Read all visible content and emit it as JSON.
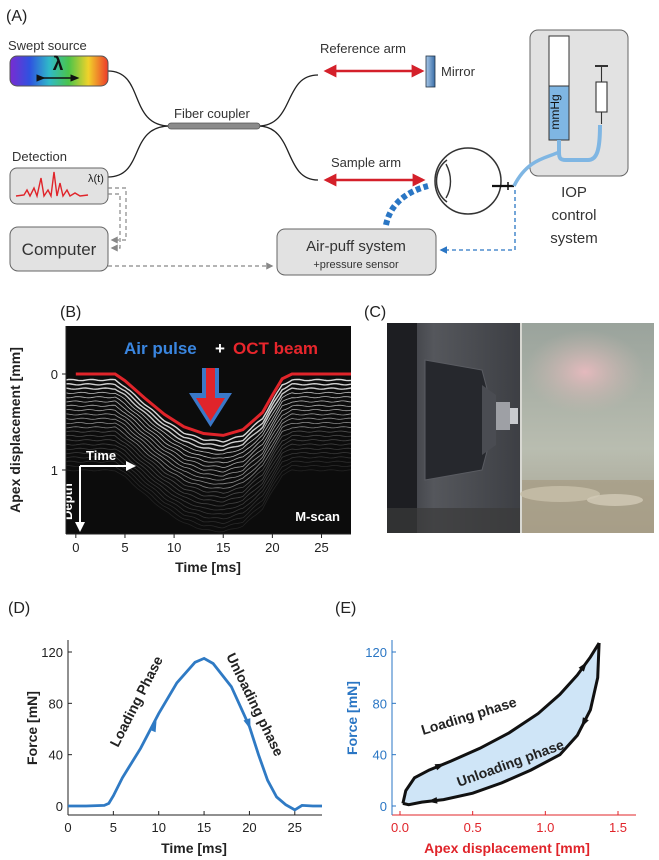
{
  "panels": {
    "a": {
      "label": "(A)",
      "swept_source": "Swept source",
      "lambda_symbol": "λ",
      "fiber_coupler": "Fiber coupler",
      "reference_arm": "Reference arm",
      "mirror": "Mirror",
      "detection": "Detection",
      "lambda_t": "λ(t)",
      "sample_arm": "Sample arm",
      "mmhg": "mmHg",
      "iop_line1": "IOP",
      "iop_line2": "control",
      "iop_line3": "system",
      "computer": "Computer",
      "airpuff_line1": "Air-puff system",
      "airpuff_line2": "+pressure sensor",
      "colors": {
        "red_arm": "#d4202a",
        "blue": "#2a76c4",
        "box_gray": "#e2e2e2",
        "fluid": "#7fb6e3"
      }
    },
    "b": {
      "label": "(B)",
      "title_air": "Air pulse",
      "title_plus": "+",
      "title_oct": "OCT beam",
      "time_label": "Time",
      "depth_label": "Depth",
      "mscan": "M-scan"
    },
    "c": {
      "label": "(C)"
    },
    "d": {
      "label": "(D)",
      "loading": "Loading Phase",
      "unloading": "Unloading phase"
    },
    "e": {
      "label": "(E)",
      "loading": "Loading phase",
      "unloading": "Unloading phase"
    }
  },
  "chart_data": [
    {
      "id": "B",
      "type": "line",
      "xlabel": "Time [ms]",
      "ylabel": "Apex displacement [mm]",
      "xlim": [
        -1,
        28
      ],
      "ylim": [
        0,
        1.6
      ],
      "y_inverted": true,
      "xticks": [
        0,
        5,
        10,
        15,
        20,
        25
      ],
      "yticks": [
        0,
        1
      ],
      "x": [
        0,
        2,
        4,
        5,
        7,
        9,
        11,
        13,
        15,
        17,
        19,
        20,
        21,
        22,
        24,
        28
      ],
      "y": [
        0,
        0,
        0,
        0.07,
        0.25,
        0.42,
        0.55,
        0.62,
        0.64,
        0.58,
        0.4,
        0.22,
        0.05,
        0,
        0,
        0
      ]
    },
    {
      "id": "D",
      "type": "line",
      "xlabel": "Time [ms]",
      "ylabel": "Force [mN]",
      "xlim": [
        0,
        28
      ],
      "ylim": [
        -5,
        140
      ],
      "xticks": [
        0,
        5,
        10,
        15,
        20,
        25
      ],
      "yticks": [
        0,
        40,
        80,
        120
      ],
      "x": [
        0,
        2,
        4,
        4.5,
        5,
        6,
        8,
        10,
        12,
        14,
        15,
        16,
        18,
        20,
        21,
        22,
        23,
        24,
        25,
        25.8,
        27,
        28
      ],
      "y": [
        0,
        0,
        0.5,
        2,
        8,
        22,
        45,
        72,
        96,
        112,
        115,
        111,
        93,
        62,
        40,
        20,
        7,
        1,
        -3,
        0.5,
        0,
        0
      ]
    },
    {
      "id": "E",
      "type": "area",
      "xlabel": "Apex displacement [mm]",
      "ylabel": "Force [mN]",
      "xlim": [
        0,
        1.5
      ],
      "ylim": [
        -5,
        140
      ],
      "xticks": [
        0.0,
        0.5,
        1.0,
        1.5
      ],
      "xtick_labels": [
        "0.0",
        "0.5",
        "1.0",
        "1.5"
      ],
      "yticks": [
        0,
        40,
        80,
        120
      ],
      "series": [
        {
          "name": "Loading phase",
          "x": [
            0.02,
            0.04,
            0.1,
            0.2,
            0.35,
            0.55,
            0.75,
            0.95,
            1.1,
            1.22,
            1.31,
            1.37
          ],
          "y": [
            2,
            12,
            22,
            28,
            35,
            45,
            57,
            72,
            87,
            102,
            116,
            127
          ]
        },
        {
          "name": "Unloading phase",
          "x": [
            1.37,
            1.36,
            1.31,
            1.22,
            1.1,
            0.9,
            0.7,
            0.5,
            0.3,
            0.15,
            0.06,
            0.02
          ],
          "y": [
            127,
            100,
            75,
            55,
            40,
            28,
            18,
            10,
            5,
            3,
            1,
            2
          ]
        }
      ]
    }
  ]
}
